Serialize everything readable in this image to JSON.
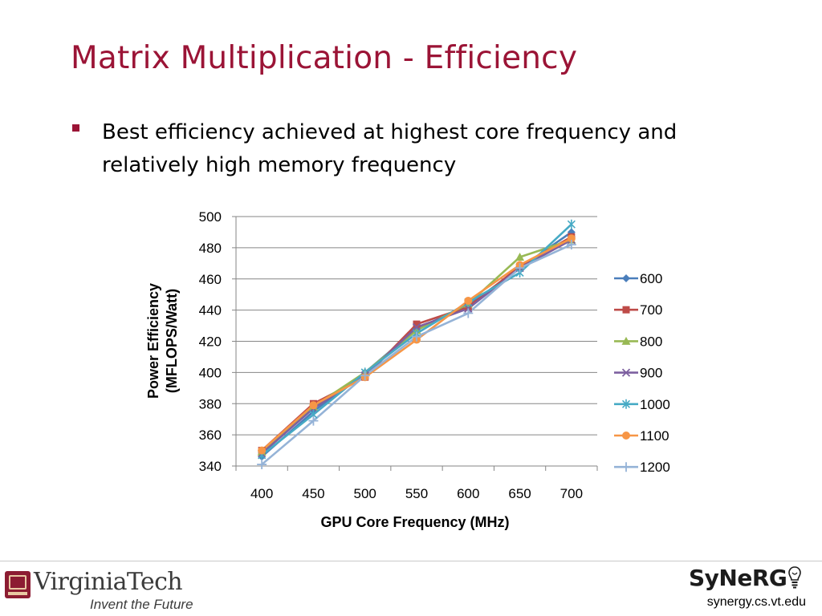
{
  "slide": {
    "title": "Matrix Multiplication - Efficiency",
    "bullet": "Best efficiency achieved at highest core frequency and relatively high memory frequency",
    "accent_color": "#9b1436"
  },
  "footer": {
    "university_logo_text": "VirginiaTech",
    "university_tagline": "Invent the Future",
    "lab_logo_text": "SyNeRG",
    "lab_url": "synergy.cs.vt.edu",
    "lab_icon": "lightbulb-icon"
  },
  "chart_data": {
    "type": "line",
    "xlabel": "GPU Core Frequency (MHz)",
    "ylabel": "Power Efficiency (MFLOPS/Watt)",
    "ylabel_lines": [
      "Power Efficiency",
      "(MFLOPS/Watt)"
    ],
    "categories": [
      "400",
      "450",
      "500",
      "550",
      "600",
      "650",
      "700"
    ],
    "ylim": [
      340,
      500
    ],
    "yticks": [
      "340",
      "360",
      "380",
      "400",
      "420",
      "440",
      "460",
      "480",
      "500"
    ],
    "grid": "horizontal",
    "legend_position": "right",
    "series": [
      {
        "name": "600",
        "color": "#4a7ebb",
        "marker": "diamond",
        "values": [
          346,
          375,
          400,
          428,
          443,
          467,
          490
        ]
      },
      {
        "name": "700",
        "color": "#be4b48",
        "marker": "square",
        "values": [
          350,
          380,
          397,
          431,
          442,
          468,
          487
        ]
      },
      {
        "name": "800",
        "color": "#98b954",
        "marker": "triangle",
        "values": [
          349,
          378,
          400,
          427,
          444,
          474,
          485
        ]
      },
      {
        "name": "900",
        "color": "#7d60a0",
        "marker": "x",
        "values": [
          348,
          377,
          398,
          429,
          441,
          467,
          485
        ]
      },
      {
        "name": "1000",
        "color": "#46aac5",
        "marker": "star",
        "values": [
          347,
          373,
          400,
          425,
          445,
          464,
          495
        ]
      },
      {
        "name": "1100",
        "color": "#f79646",
        "marker": "circle",
        "values": [
          350,
          379,
          397,
          421,
          446,
          469,
          486
        ]
      },
      {
        "name": "1200",
        "color": "#95b3d7",
        "marker": "plus",
        "values": [
          341,
          369,
          398,
          423,
          438,
          467,
          482
        ]
      }
    ]
  }
}
